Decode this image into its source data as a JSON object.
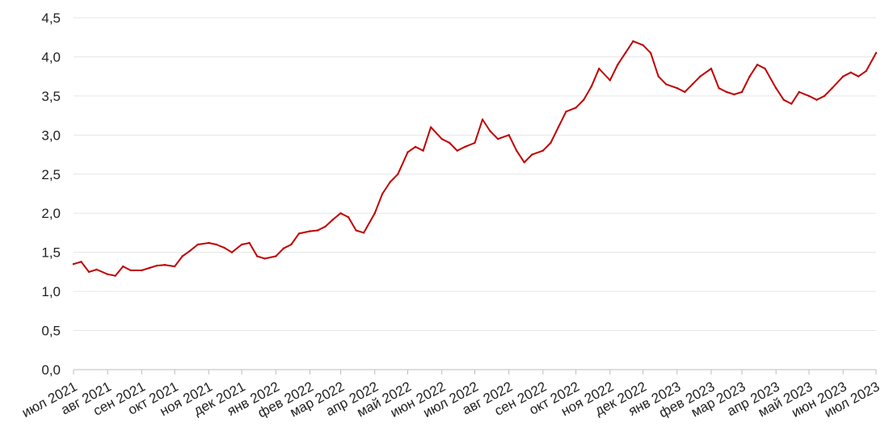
{
  "chart_data": {
    "type": "line",
    "title": "",
    "xlabel": "",
    "ylabel": "",
    "ylim": [
      0,
      4.5
    ],
    "yticks": [
      "0,0",
      "0,5",
      "1,0",
      "1,5",
      "2,0",
      "2,5",
      "3,0",
      "3,5",
      "4,0",
      "4,5"
    ],
    "grid": true,
    "legend": "none",
    "line_color": "#c00000",
    "x_tick_labels": [
      "июл 2021",
      "авг 2021",
      "сен 2021",
      "окт 2021",
      "ноя 2021",
      "дек 2021",
      "янв 2022",
      "фев 2022",
      "мар 2022",
      "апр 2022",
      "май 2022",
      "июн 2022",
      "июл 2022",
      "авг 2022",
      "сен 2022",
      "окт 2022",
      "ноя 2022",
      "дек 2022",
      "янв 2023",
      "фев 2023",
      "мар 2023",
      "апр 2023",
      "май 2023",
      "июн 2023",
      "июл 2023"
    ],
    "x": [
      "2021-07-01",
      "2021-07-08",
      "2021-07-15",
      "2021-07-22",
      "2021-08-01",
      "2021-08-08",
      "2021-08-15",
      "2021-08-22",
      "2021-09-01",
      "2021-09-08",
      "2021-09-15",
      "2021-09-22",
      "2021-10-01",
      "2021-10-08",
      "2021-10-15",
      "2021-10-22",
      "2021-11-01",
      "2021-11-08",
      "2021-11-15",
      "2021-11-22",
      "2021-12-01",
      "2021-12-08",
      "2021-12-15",
      "2021-12-22",
      "2022-01-01",
      "2022-01-08",
      "2022-01-15",
      "2022-01-22",
      "2022-02-01",
      "2022-02-08",
      "2022-02-15",
      "2022-02-22",
      "2022-03-01",
      "2022-03-08",
      "2022-03-15",
      "2022-03-22",
      "2022-04-01",
      "2022-04-08",
      "2022-04-15",
      "2022-04-22",
      "2022-05-01",
      "2022-05-08",
      "2022-05-15",
      "2022-05-22",
      "2022-06-01",
      "2022-06-08",
      "2022-06-15",
      "2022-06-22",
      "2022-07-01",
      "2022-07-08",
      "2022-07-15",
      "2022-07-22",
      "2022-08-01",
      "2022-08-08",
      "2022-08-15",
      "2022-08-22",
      "2022-09-01",
      "2022-09-08",
      "2022-09-15",
      "2022-09-22",
      "2022-10-01",
      "2022-10-08",
      "2022-10-15",
      "2022-10-22",
      "2022-11-01",
      "2022-11-08",
      "2022-11-15",
      "2022-11-22",
      "2022-12-01",
      "2022-12-08",
      "2022-12-15",
      "2022-12-22",
      "2023-01-01",
      "2023-01-08",
      "2023-01-15",
      "2023-01-22",
      "2023-02-01",
      "2023-02-08",
      "2023-02-15",
      "2023-02-22",
      "2023-03-01",
      "2023-03-08",
      "2023-03-15",
      "2023-03-22",
      "2023-04-01",
      "2023-04-08",
      "2023-04-15",
      "2023-04-22",
      "2023-05-01",
      "2023-05-08",
      "2023-05-15",
      "2023-05-22",
      "2023-06-01",
      "2023-06-08",
      "2023-06-15",
      "2023-06-22",
      "2023-07-01"
    ],
    "y": [
      1.35,
      1.38,
      1.25,
      1.28,
      1.22,
      1.2,
      1.32,
      1.27,
      1.27,
      1.3,
      1.33,
      1.34,
      1.32,
      1.45,
      1.52,
      1.6,
      1.62,
      1.6,
      1.56,
      1.5,
      1.6,
      1.62,
      1.45,
      1.42,
      1.45,
      1.55,
      1.6,
      1.74,
      1.77,
      1.78,
      1.83,
      1.92,
      2.0,
      1.95,
      1.78,
      1.75,
      2.0,
      2.25,
      2.4,
      2.5,
      2.78,
      2.85,
      2.8,
      3.1,
      2.95,
      2.9,
      2.8,
      2.85,
      2.9,
      3.2,
      3.05,
      2.95,
      3.0,
      2.8,
      2.65,
      2.75,
      2.8,
      2.9,
      3.1,
      3.3,
      3.35,
      3.45,
      3.62,
      3.85,
      3.7,
      3.9,
      4.05,
      4.2,
      4.15,
      4.05,
      3.75,
      3.65,
      3.6,
      3.55,
      3.65,
      3.75,
      3.85,
      3.6,
      3.55,
      3.52,
      3.55,
      3.75,
      3.9,
      3.85,
      3.6,
      3.45,
      3.4,
      3.55,
      3.5,
      3.45,
      3.5,
      3.6,
      3.75,
      3.8,
      3.75,
      3.82,
      4.05
    ]
  }
}
